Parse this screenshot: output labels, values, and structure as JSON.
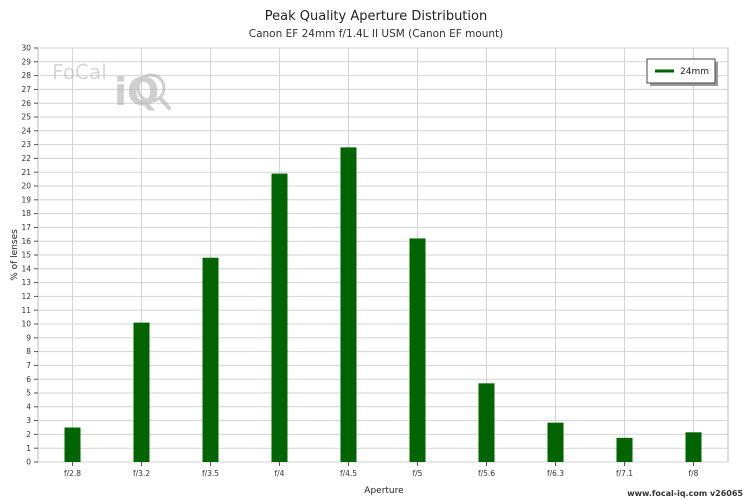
{
  "chart_data": {
    "type": "bar",
    "title": "Peak Quality Aperture Distribution",
    "subtitle": "Canon EF 24mm f/1.4L II USM (Canon EF mount)",
    "xlabel": "Aperture",
    "ylabel": "% of lenses",
    "categories": [
      "f/2.8",
      "f/3.2",
      "f/3.5",
      "f/4",
      "f/4.5",
      "f/5",
      "f/5.6",
      "f/6.3",
      "f/7.1",
      "f/8"
    ],
    "series": [
      {
        "name": "24mm",
        "color": "#006400",
        "values": [
          2.5,
          10.1,
          14.8,
          20.9,
          22.8,
          16.2,
          5.7,
          2.85,
          1.75,
          2.15
        ]
      }
    ],
    "ylim": [
      0,
      30
    ],
    "yticks": [
      0,
      1,
      2,
      3,
      4,
      5,
      6,
      7,
      8,
      9,
      10,
      11,
      12,
      13,
      14,
      15,
      16,
      17,
      18,
      19,
      20,
      21,
      22,
      23,
      24,
      25,
      26,
      27,
      28,
      29,
      30
    ],
    "grid": true,
    "legend_position": "top-right"
  },
  "logo": {
    "text_part1": "FoCal",
    "text_part2": "iQ",
    "icon": "magnifier-icon"
  },
  "credit": "www.focal-iq.com  v26065",
  "colors": {
    "bar": "#006400",
    "grid": "#d3d3d3",
    "axis": "#555555"
  }
}
